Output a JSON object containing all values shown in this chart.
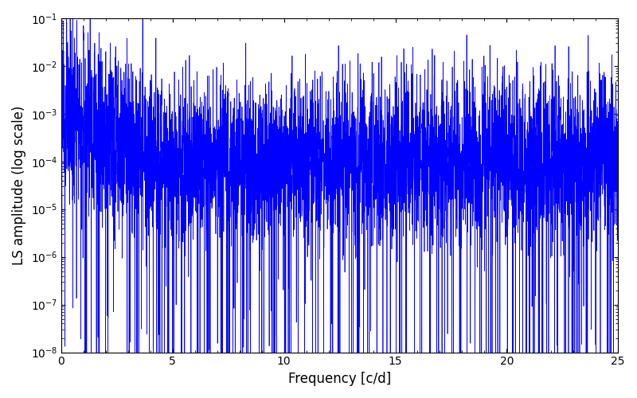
{
  "title": "",
  "xlabel": "Frequency [c/d]",
  "ylabel": "LS amplitude (log scale)",
  "xlim": [
    0,
    25
  ],
  "ylim": [
    1e-08,
    0.1
  ],
  "line_color": "#0000FF",
  "line_width": 0.5,
  "figsize": [
    8.0,
    5.0
  ],
  "dpi": 100,
  "seed": 123,
  "n_points": 5000,
  "freq_max": 25.0,
  "background_color": "#ffffff"
}
